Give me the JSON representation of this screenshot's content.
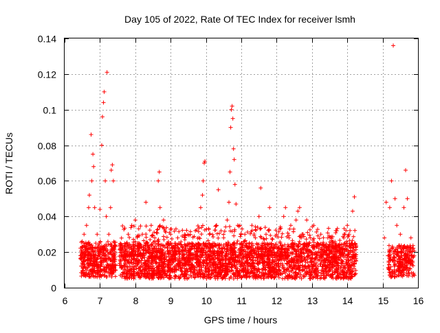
{
  "chart_data": {
    "type": "scatter",
    "title": "Day 105 of 2022, Rate Of TEC Index for receiver lsmh",
    "xlabel": "GPS time / hours",
    "ylabel": "ROTI / TECUs",
    "xlim": [
      6,
      16
    ],
    "ylim": [
      0,
      0.14
    ],
    "xticks": [
      "6",
      "7",
      "8",
      "9",
      "10",
      "11",
      "12",
      "13",
      "14",
      "15",
      "16"
    ],
    "yticks": [
      "0",
      "0.02",
      "0.04",
      "0.06",
      "0.08",
      "0.1",
      "0.12",
      "0.14"
    ],
    "grid": true,
    "marker": "+",
    "color": "#ff0000",
    "series": [
      {
        "points": [
          [
            6.45,
            0.018
          ],
          [
            6.5,
            0.026
          ],
          [
            6.52,
            0.012
          ],
          [
            6.55,
            0.03
          ],
          [
            6.58,
            0.008
          ],
          [
            6.6,
            0.022
          ],
          [
            6.62,
            0.035
          ],
          [
            6.65,
            0.015
          ],
          [
            6.68,
            0.045
          ],
          [
            6.7,
            0.052
          ],
          [
            6.72,
            0.02
          ],
          [
            6.75,
            0.086
          ],
          [
            6.77,
            0.06
          ],
          [
            6.8,
            0.075
          ],
          [
            6.82,
            0.068
          ],
          [
            6.85,
            0.045
          ],
          [
            6.88,
            0.025
          ],
          [
            6.9,
            0.012
          ],
          [
            6.92,
            0.03
          ],
          [
            6.95,
            0.018
          ],
          [
            7.0,
            0.044
          ],
          [
            7.02,
            0.02
          ],
          [
            7.05,
            0.08
          ],
          [
            7.07,
            0.096
          ],
          [
            7.1,
            0.104
          ],
          [
            7.12,
            0.11
          ],
          [
            7.15,
            0.06
          ],
          [
            7.18,
            0.04
          ],
          [
            7.2,
            0.121
          ],
          [
            7.22,
            0.02
          ],
          [
            7.25,
            0.03
          ],
          [
            7.3,
            0.045
          ],
          [
            7.32,
            0.066
          ],
          [
            7.35,
            0.069
          ],
          [
            7.38,
            0.06
          ],
          [
            7.4,
            0.018
          ],
          [
            7.6,
            0.015
          ],
          [
            7.65,
            0.022
          ],
          [
            7.7,
            0.01
          ],
          [
            7.75,
            0.018
          ],
          [
            7.8,
            0.03
          ],
          [
            7.85,
            0.012
          ],
          [
            7.9,
            0.035
          ],
          [
            7.95,
            0.02
          ],
          [
            8.0,
            0.038
          ],
          [
            8.05,
            0.015
          ],
          [
            8.1,
            0.025
          ],
          [
            8.15,
            0.01
          ],
          [
            8.2,
            0.03
          ],
          [
            8.25,
            0.018
          ],
          [
            8.3,
            0.048
          ],
          [
            8.35,
            0.012
          ],
          [
            8.4,
            0.022
          ],
          [
            8.45,
            0.035
          ],
          [
            8.5,
            0.015
          ],
          [
            8.55,
            0.028
          ],
          [
            8.6,
            0.01
          ],
          [
            8.65,
            0.06
          ],
          [
            8.68,
            0.065
          ],
          [
            8.7,
            0.045
          ],
          [
            8.75,
            0.02
          ],
          [
            8.8,
            0.038
          ],
          [
            8.85,
            0.012
          ],
          [
            8.9,
            0.025
          ],
          [
            8.95,
            0.015
          ],
          [
            9.0,
            0.03
          ],
          [
            9.05,
            0.01
          ],
          [
            9.1,
            0.022
          ],
          [
            9.15,
            0.016
          ],
          [
            9.2,
            0.028
          ],
          [
            9.25,
            0.012
          ],
          [
            9.3,
            0.024
          ],
          [
            9.35,
            0.018
          ],
          [
            9.4,
            0.03
          ],
          [
            9.45,
            0.01
          ],
          [
            9.5,
            0.02
          ],
          [
            9.55,
            0.015
          ],
          [
            9.6,
            0.025
          ],
          [
            9.65,
            0.012
          ],
          [
            9.7,
            0.032
          ],
          [
            9.75,
            0.018
          ],
          [
            9.8,
            0.028
          ],
          [
            9.85,
            0.045
          ],
          [
            9.9,
            0.052
          ],
          [
            9.92,
            0.06
          ],
          [
            9.95,
            0.07
          ],
          [
            9.97,
            0.071
          ],
          [
            10.0,
            0.02
          ],
          [
            10.05,
            0.012
          ],
          [
            10.1,
            0.03
          ],
          [
            10.15,
            0.018
          ],
          [
            10.2,
            0.025
          ],
          [
            10.25,
            0.01
          ],
          [
            10.3,
            0.035
          ],
          [
            10.35,
            0.055
          ],
          [
            10.4,
            0.02
          ],
          [
            10.45,
            0.012
          ],
          [
            10.5,
            0.028
          ],
          [
            10.55,
            0.018
          ],
          [
            10.6,
            0.038
          ],
          [
            10.65,
            0.048
          ],
          [
            10.68,
            0.065
          ],
          [
            10.7,
            0.09
          ],
          [
            10.72,
            0.1
          ],
          [
            10.74,
            0.102
          ],
          [
            10.76,
            0.095
          ],
          [
            10.78,
            0.078
          ],
          [
            10.8,
            0.072
          ],
          [
            10.82,
            0.058
          ],
          [
            10.85,
            0.047
          ],
          [
            10.9,
            0.035
          ],
          [
            10.95,
            0.015
          ],
          [
            11.0,
            0.025
          ],
          [
            11.05,
            0.01
          ],
          [
            11.1,
            0.03
          ],
          [
            11.15,
            0.018
          ],
          [
            11.2,
            0.022
          ],
          [
            11.25,
            0.012
          ],
          [
            11.3,
            0.035
          ],
          [
            11.35,
            0.02
          ],
          [
            11.4,
            0.028
          ],
          [
            11.45,
            0.015
          ],
          [
            11.5,
            0.04
          ],
          [
            11.55,
            0.056
          ],
          [
            11.6,
            0.025
          ],
          [
            11.65,
            0.012
          ],
          [
            11.7,
            0.03
          ],
          [
            11.75,
            0.018
          ],
          [
            11.8,
            0.045
          ],
          [
            11.85,
            0.01
          ],
          [
            11.9,
            0.022
          ],
          [
            11.95,
            0.015
          ],
          [
            12.0,
            0.03
          ],
          [
            12.05,
            0.012
          ],
          [
            12.1,
            0.025
          ],
          [
            12.15,
            0.018
          ],
          [
            12.2,
            0.04
          ],
          [
            12.25,
            0.045
          ],
          [
            12.3,
            0.01
          ],
          [
            12.35,
            0.028
          ],
          [
            12.4,
            0.035
          ],
          [
            12.45,
            0.015
          ],
          [
            12.5,
            0.022
          ],
          [
            12.55,
            0.038
          ],
          [
            12.6,
            0.043
          ],
          [
            12.65,
            0.045
          ],
          [
            12.7,
            0.02
          ],
          [
            12.75,
            0.03
          ],
          [
            12.8,
            0.012
          ],
          [
            12.85,
            0.038
          ],
          [
            12.9,
            0.018
          ],
          [
            12.95,
            0.028
          ],
          [
            13.0,
            0.015
          ],
          [
            13.05,
            0.035
          ],
          [
            13.1,
            0.01
          ],
          [
            13.15,
            0.025
          ],
          [
            13.2,
            0.018
          ],
          [
            13.25,
            0.03
          ],
          [
            13.3,
            0.012
          ],
          [
            13.35,
            0.022
          ],
          [
            13.4,
            0.015
          ],
          [
            13.45,
            0.028
          ],
          [
            13.5,
            0.01
          ],
          [
            13.55,
            0.02
          ],
          [
            13.6,
            0.018
          ],
          [
            13.65,
            0.025
          ],
          [
            13.7,
            0.032
          ],
          [
            13.75,
            0.012
          ],
          [
            13.8,
            0.022
          ],
          [
            13.85,
            0.015
          ],
          [
            13.9,
            0.028
          ],
          [
            13.95,
            0.018
          ],
          [
            14.0,
            0.035
          ],
          [
            14.05,
            0.03
          ],
          [
            14.1,
            0.012
          ],
          [
            14.15,
            0.043
          ],
          [
            14.2,
            0.051
          ],
          [
            14.25,
            0.015
          ],
          [
            15.05,
            0.028
          ],
          [
            15.1,
            0.048
          ],
          [
            15.15,
            0.018
          ],
          [
            15.2,
            0.045
          ],
          [
            15.25,
            0.06
          ],
          [
            15.3,
            0.136
          ],
          [
            15.35,
            0.05
          ],
          [
            15.4,
            0.035
          ],
          [
            15.45,
            0.018
          ],
          [
            15.5,
            0.03
          ],
          [
            15.55,
            0.012
          ],
          [
            15.6,
            0.045
          ],
          [
            15.65,
            0.066
          ],
          [
            15.7,
            0.05
          ],
          [
            15.75,
            0.02
          ],
          [
            15.8,
            0.028
          ],
          [
            15.85,
            0.014
          ]
        ]
      }
    ],
    "density_segments": [
      {
        "x": [
          6.45,
          7.45
        ],
        "y": [
          0.006,
          0.026
        ],
        "count": 420
      },
      {
        "x": [
          7.55,
          14.25
        ],
        "y": [
          0.005,
          0.025
        ],
        "count": 2600
      },
      {
        "x": [
          7.55,
          14.25
        ],
        "y": [
          0.015,
          0.035
        ],
        "count": 420
      },
      {
        "x": [
          15.15,
          15.9
        ],
        "y": [
          0.006,
          0.024
        ],
        "count": 260
      }
    ]
  }
}
